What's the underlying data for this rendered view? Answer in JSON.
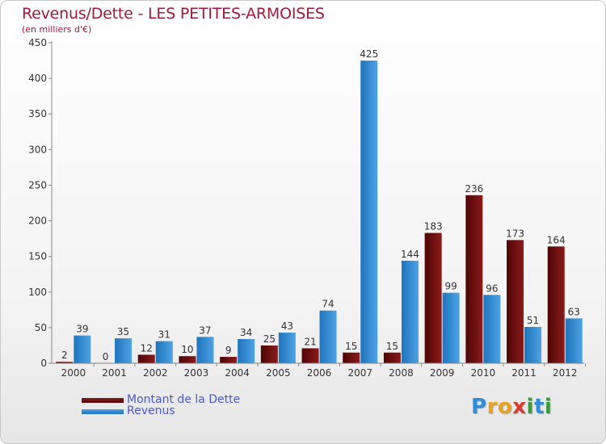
{
  "title": "Revenus/Dette - LES PETITES-ARMOISES",
  "subtitle": "(en milliers d'€)",
  "brand": {
    "letters": [
      "P",
      "r",
      "o",
      "x",
      "i",
      "t",
      "i"
    ],
    "colors": [
      "#2e8fd8",
      "#e8a21e",
      "#e8a21e",
      "#d93b2e",
      "#3a9a3a",
      "#2e8fd8",
      "#3a9a3a"
    ]
  },
  "colors": {
    "dette": "#8b1a1a",
    "dette_dark": "#4e0606",
    "revenus": "#4da3e3",
    "revenus_dark": "#1f74bd",
    "title": "#a2183a",
    "legend_text": "#4a58d0"
  },
  "chart_data": {
    "type": "bar",
    "title": "Revenus/Dette - LES PETITES-ARMOISES",
    "subtitle": "(en milliers d'€)",
    "categories": [
      "2000",
      "2001",
      "2002",
      "2003",
      "2004",
      "2005",
      "2006",
      "2007",
      "2008",
      "2009",
      "2010",
      "2011",
      "2012"
    ],
    "series": [
      {
        "name": "Montant de la Dette",
        "values": [
          2,
          0,
          12,
          10,
          9,
          25,
          21,
          15,
          15,
          183,
          236,
          173,
          164
        ]
      },
      {
        "name": "Revenus",
        "values": [
          39,
          35,
          31,
          37,
          34,
          43,
          74,
          425,
          144,
          99,
          96,
          51,
          63
        ]
      }
    ],
    "ylim": [
      0,
      450
    ],
    "yticks": [
      0,
      50,
      100,
      150,
      200,
      250,
      300,
      350,
      400,
      450
    ],
    "grid": false,
    "legend_position": "bottom-left",
    "xlabel": "",
    "ylabel": ""
  }
}
